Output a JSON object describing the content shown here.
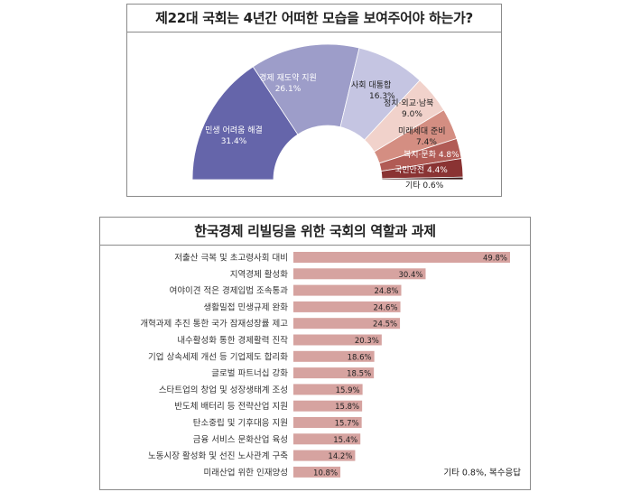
{
  "chart_data": [
    {
      "type": "pie",
      "title": "제22대 국회는 4년간 어떠한 모습을 보여주어야 하는가?",
      "unit": "%",
      "slices": [
        {
          "label": "민생 어려움 해결",
          "value": 31.4,
          "value_label": "31.4%",
          "color": "#6565aa"
        },
        {
          "label": "경제 재도약 지원",
          "value": 26.1,
          "value_label": "26.1%",
          "color": "#9d9dc9"
        },
        {
          "label": "사회 대통합",
          "value": 16.3,
          "value_label": "16.3%",
          "color": "#c5c5e2"
        },
        {
          "label": "정치·외교·남북",
          "value": 9.0,
          "value_label": "9.0%",
          "color": "#f1d2cb"
        },
        {
          "label": "미래세대 준비",
          "value": 7.4,
          "value_label": "7.4%",
          "color": "#d48e82"
        },
        {
          "label": "복지·문화",
          "value": 4.8,
          "value_label": "4.8%",
          "color": "#b15b55"
        },
        {
          "label": "국민안전",
          "value": 4.4,
          "value_label": "4.4%",
          "color": "#8a3333"
        },
        {
          "label": "기타",
          "value": 0.6,
          "value_label": "0.6%",
          "color": "#3a1a1a"
        }
      ]
    },
    {
      "type": "bar",
      "orientation": "horizontal",
      "title": "한국경제 리빌딩을 위한 국회의 역할과 과제",
      "categories": [
        "저출산 극복 및 초고령사회 대비",
        "지역경제 활성화",
        "여야이견 적은 경제입법 조속통과",
        "생활밀접 민생규제 완화",
        "개혁과제 추진 통한 국가 잠재성장률 제고",
        "내수활성화 통한 경제활력 진작",
        "기업 상속세제 개선 등 기업제도 합리화",
        "글로벌 파트너십 강화",
        "스타트업의 창업 및 성장생태계 조성",
        "반도체 배터리 등 전략산업 지원",
        "탄소중립 및 기후대응 지원",
        "금융 서비스 문화산업 육성",
        "노동시장 활성화 및 선진 노사관계 구축",
        "미래산업 위한 인재양성"
      ],
      "values": [
        49.8,
        30.4,
        24.8,
        24.6,
        24.5,
        20.3,
        18.6,
        18.5,
        15.9,
        15.8,
        15.7,
        15.4,
        14.2,
        10.8
      ],
      "value_labels": [
        "49.8%",
        "30.4%",
        "24.8%",
        "24.6%",
        "24.5%",
        "20.3%",
        "18.6%",
        "18.5%",
        "15.9%",
        "15.8%",
        "15.7%",
        "15.4%",
        "14.2%",
        "10.8%"
      ],
      "bar_color": "#d6a3a0",
      "note": "기타 0.8%, 복수응답"
    }
  ]
}
